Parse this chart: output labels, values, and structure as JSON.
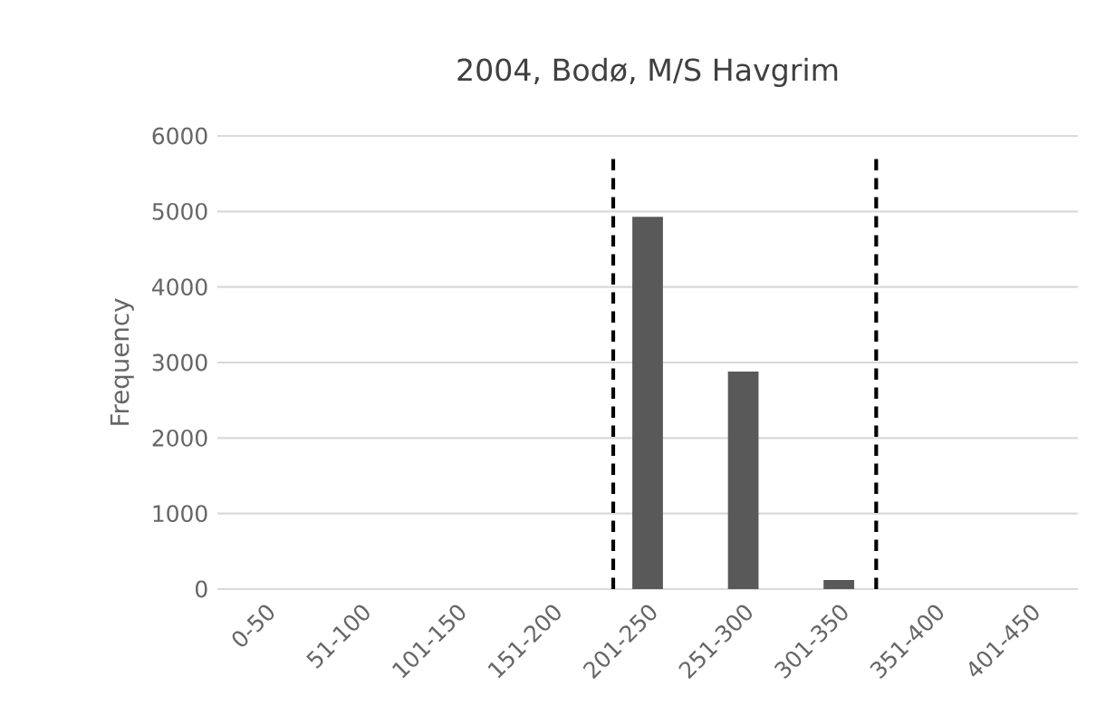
{
  "chart_data": {
    "type": "bar",
    "title": "2004, Bodø, M/S Havgrim",
    "ylabel": "Frequency",
    "categories": [
      "0-50",
      "51-100",
      "101-150",
      "151-200",
      "201-250",
      "251-300",
      "301-350",
      "351-400",
      "401-450"
    ],
    "values": [
      0,
      0,
      0,
      0,
      4930,
      2880,
      120,
      0,
      0
    ],
    "color": "#595959",
    "ylim": [
      0,
      6000
    ],
    "yticks": [
      0,
      1000,
      2000,
      3000,
      4000,
      5000,
      6000
    ],
    "grid": "y"
  }
}
